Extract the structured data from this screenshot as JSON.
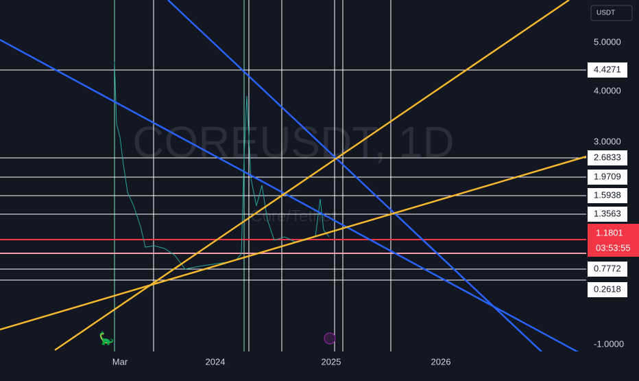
{
  "currency": "USDT",
  "watermark": {
    "symbol": "COREUSDT, 1D",
    "pair": "Core/Tether"
  },
  "price_axis": [
    "5.0000",
    "4.0000",
    "3.0000",
    "-1.0000"
  ],
  "level_labels": [
    "4.4271",
    "2.6833",
    "1.9709",
    "1.5938",
    "1.3563",
    "0.7772",
    "0.2618"
  ],
  "last_price": {
    "price": "1.1801",
    "countdown": "03:53:55"
  },
  "time_axis": [
    "Mar",
    "2024",
    "2025",
    "2026"
  ]
}
